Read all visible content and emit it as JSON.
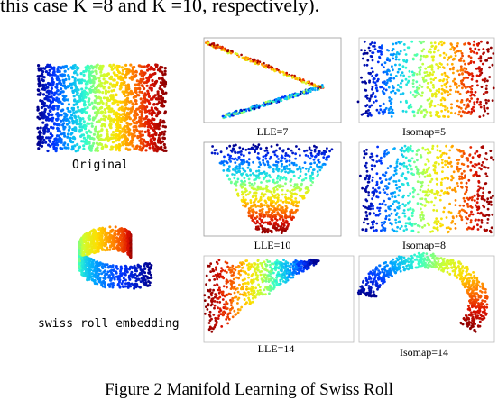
{
  "top_line": "this case  K =8 and  K =10, respectively).",
  "captions": {
    "original": "Original",
    "swiss_roll": "swiss roll embedding",
    "lle7": "LLE=7",
    "isomap5": "Isomap=5",
    "lle10": "LLE=10",
    "isomap8": "Isomap=8",
    "lle14": "LLE=14",
    "isomap14": "Isomap=14"
  },
  "figure_caption": "Figure 2    Manifold Learning of Swiss Roll",
  "colormap": [
    "#00008b",
    "#0033ff",
    "#00aaff",
    "#33ffcc",
    "#ccff33",
    "#ffdd00",
    "#ff7700",
    "#dd1100",
    "#8b0000"
  ]
}
